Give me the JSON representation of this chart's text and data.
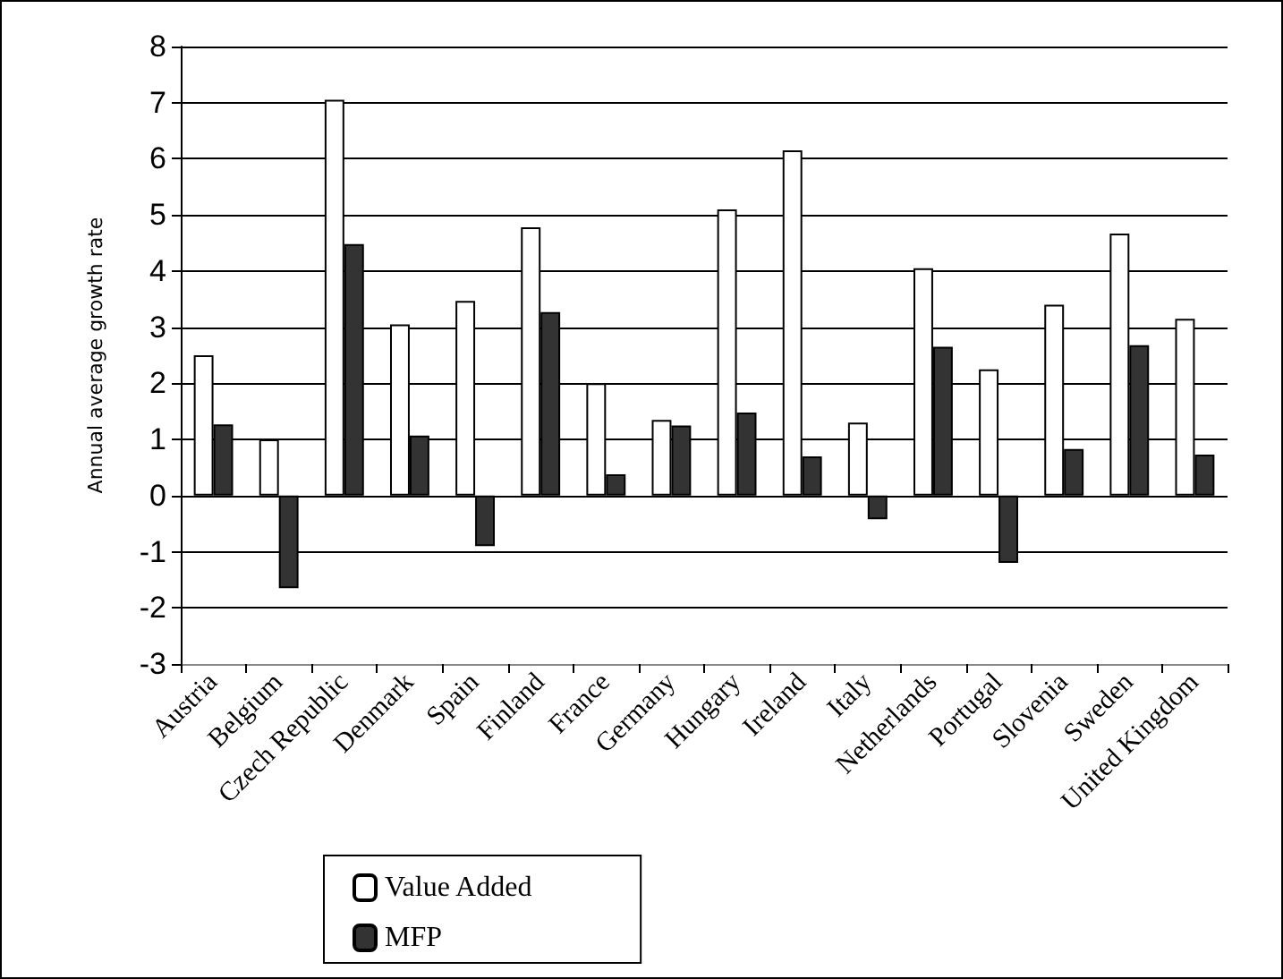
{
  "chart_data": {
    "type": "bar",
    "ylabel": "Annual average growth rate",
    "categories": [
      "Austria",
      "Belgium",
      "Czech Republic",
      "Denmark",
      "Spain",
      "Finland",
      "France",
      "Germany",
      "Hungary",
      "Ireland",
      "Italy",
      "Netherlands",
      "Portugal",
      "Slovenia",
      "Sweden",
      "United Kingdom"
    ],
    "series": [
      {
        "name": "Value Added",
        "color": "#ffffff",
        "values": [
          2.5,
          1.0,
          7.05,
          3.05,
          3.47,
          4.78,
          2.0,
          1.35,
          5.1,
          6.15,
          1.3,
          4.05,
          2.25,
          3.4,
          4.67,
          3.15
        ]
      },
      {
        "name": "MFP",
        "color": "#333333",
        "values": [
          1.27,
          -1.65,
          4.48,
          1.07,
          -0.9,
          3.27,
          0.38,
          1.25,
          1.48,
          0.7,
          -0.42,
          2.65,
          -1.2,
          0.83,
          2.68,
          0.73
        ]
      }
    ],
    "ylim": [
      -3,
      8
    ],
    "yticks": [
      -3,
      -2,
      -1,
      0,
      1,
      2,
      3,
      4,
      5,
      6,
      7,
      8
    ],
    "grid": "y",
    "legend": "bottom"
  }
}
